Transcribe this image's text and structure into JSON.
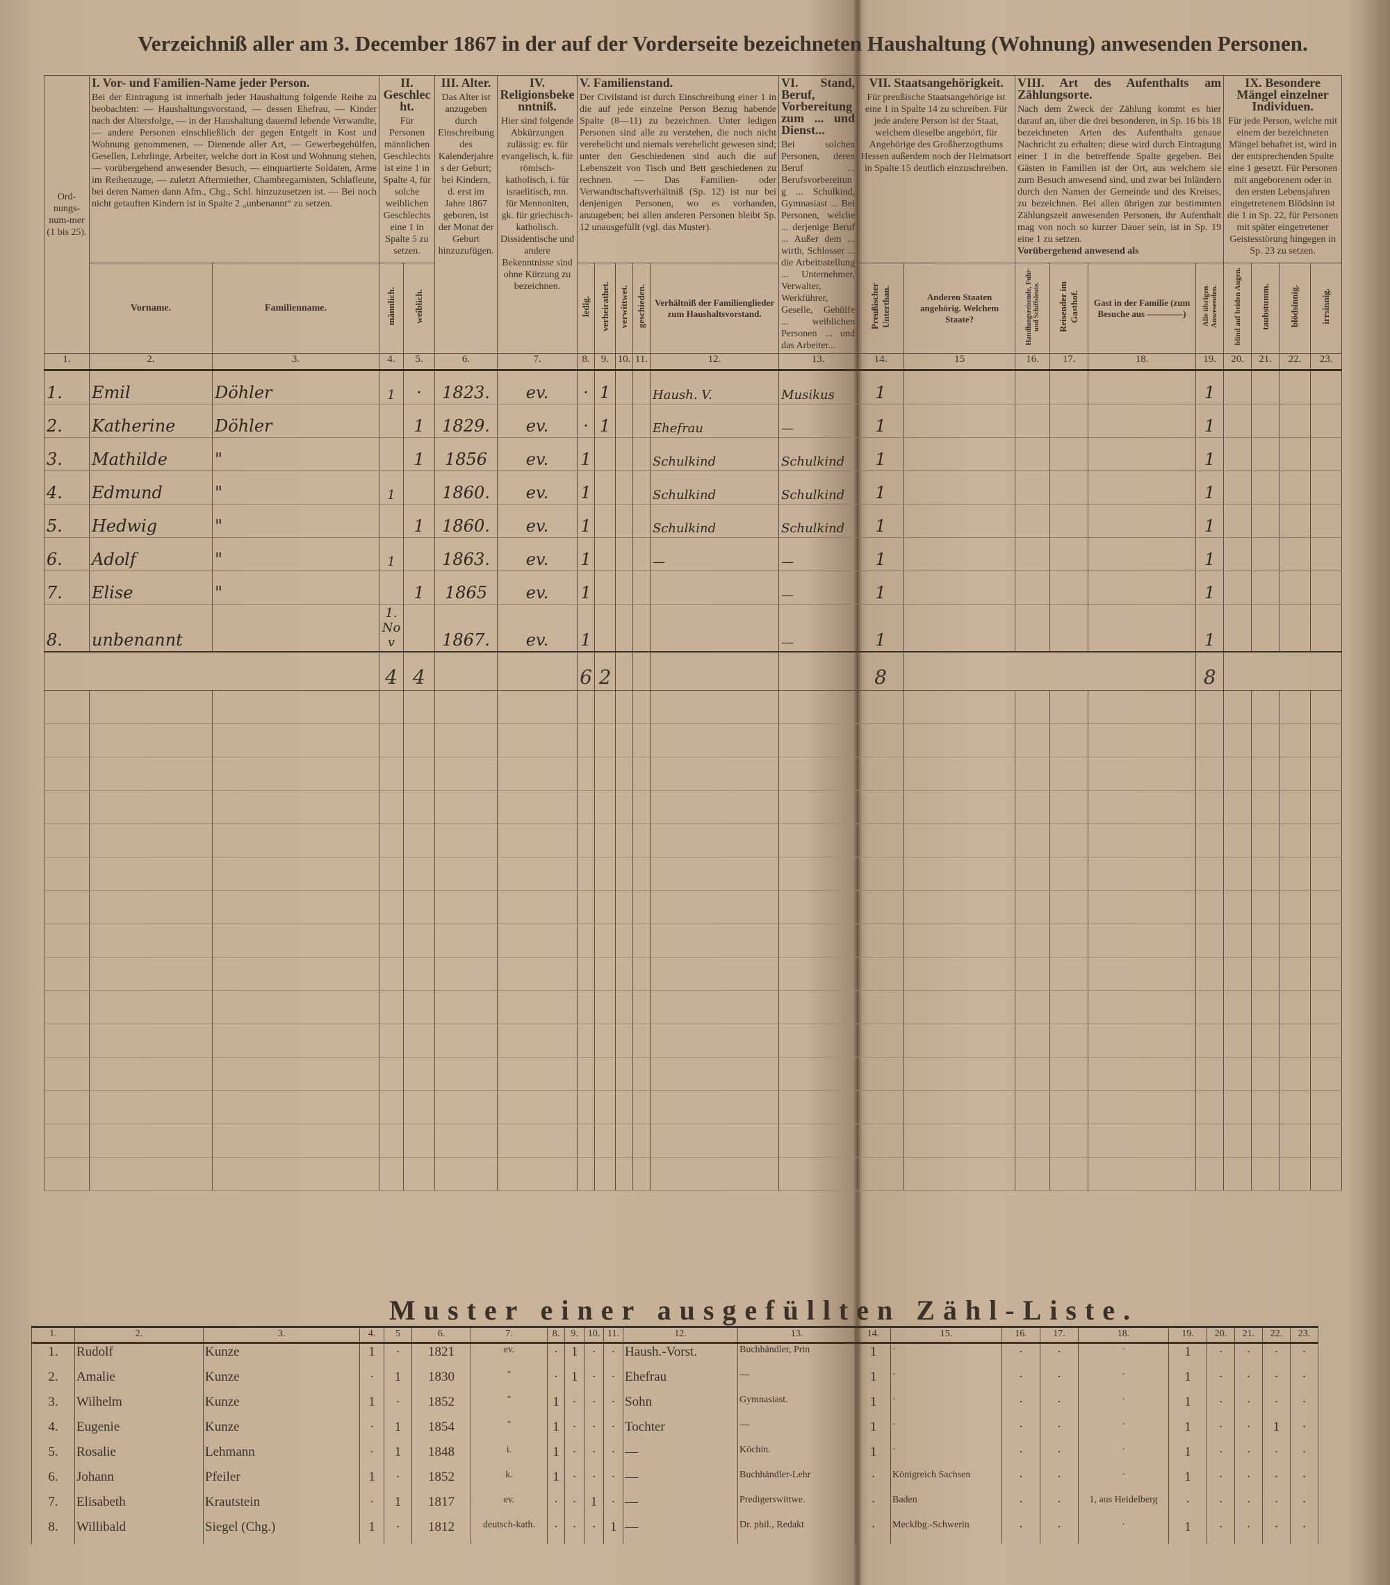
{
  "title": "Verzeichniß aller am 3. December 1867 in der auf der Vorderseite bezeichneten Haushaltung (Wohnung) anwesenden Personen.",
  "headers": {
    "col1": {
      "text": "Ord-nungs-num-mer (1 bis 25)."
    },
    "col2_3": {
      "heading": "I. Vor- und Familien-Name jeder Person.",
      "text": "Bei der Eintragung ist innerhalb jeder Haushaltung folgende Reihe zu beobachten: — Haushaltungsvorstand, — dessen Ehefrau, — Kinder nach der Altersfolge, — in der Haushaltung dauernd lebende Verwandte, — andere Personen einschließlich der gegen Entgelt in Kost und Wohnung genommenen, — Dienende aller Art, — Gewerbegehülfen, Gesellen, Lehrlinge, Arbeiter, welche dort in Kost und Wohnung stehen, — vorübergehend anwesender Besuch, — einquartierte Soldaten, Arme im Reihenzuge, — zuletzt Aftermiether, Chambregarnisten, Schlafleute, bei deren Namen dann Afm., Chg., Schl. hinzuzusetzen ist. — Bei noch nicht getauften Kindern ist in Spalte 2 „unbenannt“ zu setzen."
    },
    "col4_5": {
      "heading": "II. Geschlecht.",
      "text": "Für Personen männlichen Geschlechts ist eine 1 in Spalte 4, für solche weiblichen Geschlechts eine 1 in Spalte 5 zu setzen."
    },
    "col6": {
      "heading": "III. Alter.",
      "text": "Das Alter ist anzugeben durch Einschreibung des Kalenderjahres der Geburt; bei Kindern, d. erst im Jahre 1867 geboren, ist der Monat der Geburt hinzuzufügen."
    },
    "col7": {
      "heading": "IV. Religionsbekenntniß.",
      "text": "Hier sind folgende Abkürzungen zulässig: ev. für evangelisch, k. für römisch-katholisch, i. für israelitisch, mn. für Mennoniten, gk. für griechisch-katholisch. Dissidentische und andere Bekenntnisse sind ohne Kürzung zu bezeichnen."
    },
    "col8_12": {
      "heading": "V. Familienstand.",
      "text": "Der Civilstand ist durch Einschreibung einer 1 in die auf jede einzelne Person Bezug habende Spalte (8—11) zu bezeichnen. Unter ledigen Personen sind alle zu verstehen, die noch nicht verehelicht und niemals verehelicht gewesen sind; unter den Geschiedenen sind auch die auf Lebenszeit von Tisch und Bett geschiedenen zu rechnen. — Das Familien- oder Verwandtschaftsverhältniß (Sp. 12) ist nur bei denjenigen Personen, wo es vorhanden, anzugeben; bei allen anderen Personen bleibt Sp. 12 unausgefüllt (vgl. das Muster)."
    },
    "col13": {
      "heading": "VI. Stand, Beruf, Vorbereitung zum ... und Dienst...",
      "text": "Bei solchen Personen, deren Beruf ... Berufsvorbereitung ... Schulkind, Gymnasiast ... Bei Personen, welche ... derjenige Beruf ... Außer dem ... wirth, Schlosser ... die Arbeitsstellung ... Unternehmer, Verwalter, Werkführer, Geselle, Gehülfe ... weiblichen Personen ... und das Arbeiter..."
    },
    "col14_15": {
      "heading": "VII. Staatsangehörigkeit.",
      "text": "Für preußische Staatsangehörige ist eine 1 in Spalte 14 zu schreiben. Für jede andere Person ist der Staat, welchem dieselbe angehört, für Angehörige des Großherzogthums Hessen außerdem noch der Heimatsort in Spalte 15 deutlich einzuschreiben."
    },
    "col16_19": {
      "heading": "VIII. Art des Aufenthalts am Zählungsorte.",
      "text": "Nach dem Zweck der Zählung kommt es hier darauf an, über die drei besonderen, in Sp. 16 bis 18 bezeichneten Arten des Aufenthalts genaue Nachricht zu erhalten; diese wird durch Eintragung einer 1 in die betreffende Spalte gegeben. Bei Gästen in Familien ist der Ort, aus welchem sie zum Besuch anwesend sind, und zwar bei Inländern durch den Namen der Gemeinde und des Kreises, zu bezeichnen. Bei allen übrigen zur bestimmten Zählungszeit anwesenden Personen, ihr Aufenthalt mag von noch so kurzer Dauer sein, ist in Sp. 19 eine 1 zu setzen."
    },
    "col20_23": {
      "heading": "IX. Besondere Mängel einzelner Individuen.",
      "text": "Für jede Person, welche mit einem der bezeichneten Mängel behaftet ist, wird in der entsprechenden Spalte eine 1 gesetzt. Für Personen mit angeborenem oder in den ersten Lebensjahren eingetretenem Blödsinn ist die 1 in Sp. 22, für Personen mit später eingetretener Geistesstörung hingegen in Sp. 23 zu setzen."
    }
  },
  "subheaders": {
    "vorname": "Vorname.",
    "familienname": "Familienname.",
    "maennlich": "männlich.",
    "weiblich": "weiblich.",
    "ledig": "ledig.",
    "verheirathet": "verheirathet.",
    "verwittwet": "verwittwet.",
    "geschieden": "geschieden.",
    "verhaeltniss": "Verhältniß der Familienglieder zum Haushaltsvorstand.",
    "preuss": "Preußischer Unterthan.",
    "andere_staaten": "Anderen Staaten angehörig. Welchem Staate?",
    "voruebergehend": "Vorübergehend anwesend als",
    "col16": "Handlungsreisende, Fuhr- und Schiffsleute.",
    "col17": "Reisender im Gasthof.",
    "col18": "Gast in der Familie (zum Besuche aus ————)",
    "col19": "Alle übrigen Anwesenden.",
    "col20": "blind auf beiden Augen.",
    "col21": "taubstumm.",
    "col22": "blödsinnig.",
    "col23": "irrsinnig."
  },
  "column_numbers": [
    "1.",
    "2.",
    "3.",
    "4.",
    "5.",
    "6.",
    "7.",
    "8.",
    "9.",
    "10.",
    "11.",
    "12.",
    "13.",
    "14.",
    "15",
    "16.",
    "17.",
    "18.",
    "19.",
    "20.",
    "21.",
    "22.",
    "23."
  ],
  "rows": [
    [
      "1.",
      "Emil",
      "Döhler",
      "1",
      "·",
      "1823.",
      "ev.",
      "·",
      "1",
      "",
      "",
      "Haush. V.",
      "Musikus",
      "1",
      "",
      "",
      "",
      "",
      "1",
      "",
      "",
      "",
      ""
    ],
    [
      "2.",
      "Katherine",
      "Döhler",
      "",
      "1",
      "1829.",
      "ev.",
      "·",
      "1",
      "",
      "",
      "Ehefrau",
      "—",
      "1",
      "",
      "",
      "",
      "",
      "1",
      "",
      "",
      "",
      ""
    ],
    [
      "3.",
      "Mathilde",
      "\"",
      "",
      "1",
      "1856",
      "ev.",
      "1",
      "",
      "",
      "",
      "Schulkind",
      "Schulkind",
      "1",
      "",
      "",
      "",
      "",
      "1",
      "",
      "",
      "",
      ""
    ],
    [
      "4.",
      "Edmund",
      "\"",
      "1",
      "",
      "1860.",
      "ev.",
      "1",
      "",
      "",
      "",
      "Schulkind",
      "Schulkind",
      "1",
      "",
      "",
      "",
      "",
      "1",
      "",
      "",
      "",
      ""
    ],
    [
      "5.",
      "Hedwig",
      "\"",
      "",
      "1",
      "1860.",
      "ev.",
      "1",
      "",
      "",
      "",
      "Schulkind",
      "Schulkind",
      "1",
      "",
      "",
      "",
      "",
      "1",
      "",
      "",
      "",
      ""
    ],
    [
      "6.",
      "Adolf",
      "\"",
      "1",
      "",
      "1863.",
      "ev.",
      "1",
      "",
      "",
      "",
      "—",
      "—",
      "1",
      "",
      "",
      "",
      "",
      "1",
      "",
      "",
      "",
      ""
    ],
    [
      "7.",
      "Elise",
      "\"",
      "",
      "1",
      "1865",
      "ev.",
      "1",
      "",
      "",
      "",
      "",
      "—",
      "1",
      "",
      "",
      "",
      "",
      "1",
      "",
      "",
      "",
      ""
    ],
    [
      "8.",
      "unbenannt",
      "",
      "1. Nov",
      "",
      "1867.",
      "ev.",
      "1",
      "",
      "",
      "",
      "",
      "—",
      "1",
      "",
      "",
      "",
      "",
      "1",
      "",
      "",
      "",
      ""
    ]
  ],
  "totals": {
    "maennlich": "4",
    "weiblich": "4",
    "ledig": "6",
    "verheirathet": "2",
    "preuss": "8",
    "uebrige": "8"
  },
  "sample": {
    "title": "Muster einer ausgefüllten Zähl-Liste.",
    "column_numbers": [
      "1.",
      "2.",
      "3.",
      "4.",
      "5",
      "6.",
      "7.",
      "8.",
      "9.",
      "10.",
      "11.",
      "12.",
      "13.",
      "14.",
      "15.",
      "16.",
      "17.",
      "18.",
      "19.",
      "20.",
      "21.",
      "22.",
      "23."
    ],
    "rows": [
      [
        "1.",
        "Rudolf",
        "Kunze",
        "1",
        "·",
        "1821",
        "ev.",
        "·",
        "1",
        "·",
        "·",
        "Haush.-Vorst.",
        "Buchhändler, Prin",
        "1",
        "·",
        "·",
        "·",
        "·",
        "1",
        "·",
        "·",
        "·",
        "·"
      ],
      [
        "2.",
        "Amalie",
        "Kunze",
        "·",
        "1",
        "1830",
        "\"",
        "·",
        "1",
        "·",
        "·",
        "Ehefrau",
        "—",
        "1",
        "·",
        "·",
        "·",
        "·",
        "1",
        "·",
        "·",
        "·",
        "·"
      ],
      [
        "3.",
        "Wilhelm",
        "Kunze",
        "1",
        "·",
        "1852",
        "\"",
        "1",
        "·",
        "·",
        "·",
        "Sohn",
        "Gymnasiast.",
        "1",
        "·",
        "·",
        "·",
        "·",
        "1",
        "·",
        "·",
        "·",
        "·"
      ],
      [
        "4.",
        "Eugenie",
        "Kunze",
        "·",
        "1",
        "1854",
        "\"",
        "1",
        "·",
        "·",
        "·",
        "Tochter",
        "—",
        "1",
        "·",
        "·",
        "·",
        "·",
        "1",
        "·",
        "·",
        "1",
        "·"
      ],
      [
        "5.",
        "Rosalie",
        "Lehmann",
        "·",
        "1",
        "1848",
        "i.",
        "1",
        "·",
        "·",
        "·",
        "—",
        "Köchin.",
        "1",
        "·",
        "·",
        "·",
        "·",
        "1",
        "·",
        "·",
        "·",
        "·"
      ],
      [
        "6.",
        "Johann",
        "Pfeiler",
        "1",
        "·",
        "1852",
        "k.",
        "1",
        "·",
        "·",
        "·",
        "—",
        "Buchhändler-Lehr",
        "·",
        "Königreich Sachsen",
        "·",
        "·",
        "·",
        "1",
        "·",
        "·",
        "·",
        "·"
      ],
      [
        "7.",
        "Elisabeth",
        "Krautstein",
        "·",
        "1",
        "1817",
        "ev.",
        "·",
        "·",
        "1",
        "·",
        "—",
        "Predigerswittwe.",
        "·",
        "Baden",
        "·",
        "·",
        "1, aus Heidelberg",
        "·",
        "·",
        "·",
        "·",
        "·"
      ],
      [
        "8.",
        "Willibald",
        "Siegel (Chg.)",
        "1",
        "·",
        "1812",
        "deutsch-kath.",
        "·",
        "·",
        "·",
        "1",
        "—",
        "Dr. phil., Redakt",
        "·",
        "Mecklbg.-Schwerin",
        "·",
        "·",
        "·",
        "1",
        "·",
        "·",
        "·",
        "·"
      ]
    ]
  },
  "colors": {
    "paper": "#c9b49a",
    "ink": "#3a3128",
    "handwriting": "#2e261f"
  }
}
